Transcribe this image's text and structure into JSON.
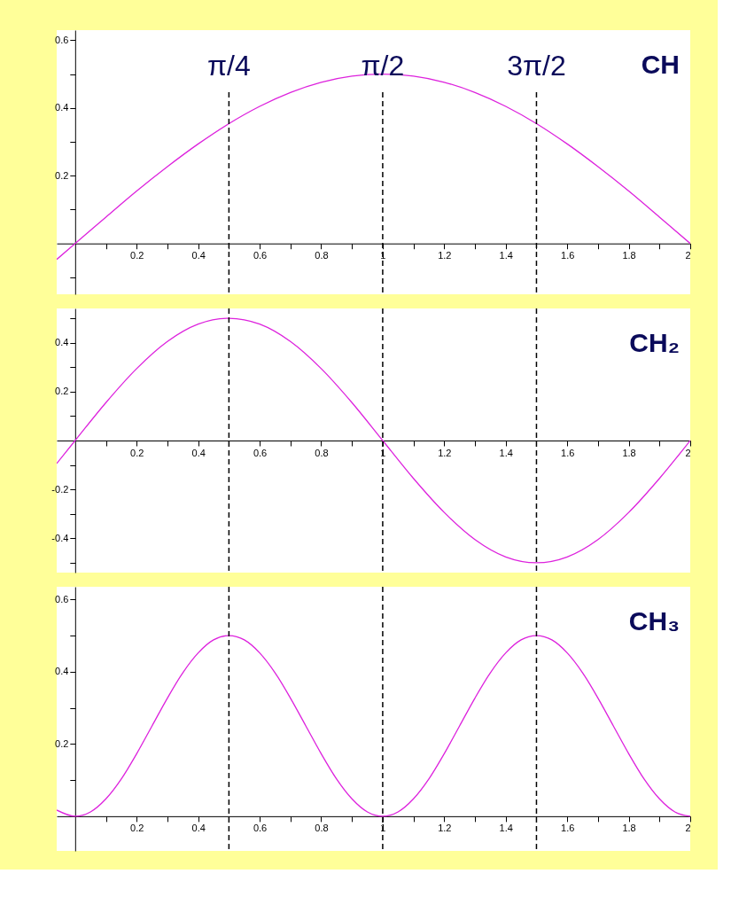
{
  "chart_data": [
    {
      "type": "line",
      "title": "CH",
      "x": [
        -0.06,
        0,
        0.1,
        0.2,
        0.3,
        0.4,
        0.5,
        0.6,
        0.7,
        0.8,
        0.9,
        1,
        1.1,
        1.2,
        1.3,
        1.4,
        1.5,
        1.6,
        1.7,
        1.8,
        1.9,
        2
      ],
      "series": [
        {
          "color": "#dd22dd",
          "values": [
            -0.047,
            0,
            0.078,
            0.155,
            0.227,
            0.294,
            0.354,
            0.405,
            0.446,
            0.476,
            0.494,
            0.5,
            0.494,
            0.476,
            0.446,
            0.405,
            0.354,
            0.294,
            0.227,
            0.155,
            0.078,
            0
          ]
        }
      ],
      "xlim": [
        -0.06,
        2
      ],
      "ylim": [
        -0.15,
        0.63
      ],
      "xticks": [
        {
          "value": 0.1,
          "label": null
        },
        0.2,
        {
          "value": 0.3,
          "label": null
        },
        0.4,
        {
          "value": 0.5,
          "label": null
        },
        0.6,
        {
          "value": 0.7,
          "label": null
        },
        0.8,
        {
          "value": 0.9,
          "label": null
        },
        1,
        {
          "value": 1.1,
          "label": null
        },
        1.2,
        {
          "value": 1.3,
          "label": null
        },
        1.4,
        {
          "value": 1.5,
          "label": null
        },
        1.6,
        {
          "value": 1.7,
          "label": null
        },
        1.8,
        {
          "value": 1.9,
          "label": null
        },
        2
      ],
      "yticks": [
        {
          "value": -0.1,
          "label": null
        },
        {
          "value": 0.1,
          "label": null
        },
        0.2,
        {
          "value": 0.3,
          "label": null
        },
        0.4,
        {
          "value": 0.5,
          "label": null
        },
        0.6
      ],
      "ref_lines": [
        {
          "axis": "x",
          "value": 0.5,
          "label": "π/4",
          "color": "#000000",
          "line_style": "dashed"
        },
        {
          "axis": "x",
          "value": 1,
          "label": "π/2",
          "color": "#000000",
          "line_style": "dashed"
        },
        {
          "axis": "x",
          "value": 1.5,
          "label": "3π/2",
          "color": "#000000",
          "line_style": "dashed"
        }
      ],
      "grid": false,
      "marker": "none",
      "line_style": "solid"
    },
    {
      "type": "line",
      "title": "CH₂",
      "x": [
        -0.06,
        0,
        0.1,
        0.2,
        0.3,
        0.4,
        0.5,
        0.6,
        0.7,
        0.8,
        0.9,
        1,
        1.1,
        1.2,
        1.3,
        1.4,
        1.5,
        1.6,
        1.7,
        1.8,
        1.9,
        2
      ],
      "series": [
        {
          "color": "#dd22dd",
          "values": [
            -0.094,
            0,
            0.155,
            0.294,
            0.405,
            0.476,
            0.5,
            0.476,
            0.405,
            0.294,
            0.155,
            0,
            -0.155,
            -0.294,
            -0.405,
            -0.476,
            -0.5,
            -0.476,
            -0.405,
            -0.294,
            -0.155,
            0
          ]
        }
      ],
      "xlim": [
        -0.06,
        2
      ],
      "ylim": [
        -0.54,
        0.54
      ],
      "xticks": [
        {
          "value": 0.1,
          "label": null
        },
        0.2,
        {
          "value": 0.3,
          "label": null
        },
        0.4,
        {
          "value": 0.5,
          "label": null
        },
        0.6,
        {
          "value": 0.7,
          "label": null
        },
        0.8,
        {
          "value": 0.9,
          "label": null
        },
        1,
        {
          "value": 1.1,
          "label": null
        },
        1.2,
        {
          "value": 1.3,
          "label": null
        },
        1.4,
        {
          "value": 1.5,
          "label": null
        },
        1.6,
        {
          "value": 1.7,
          "label": null
        },
        1.8,
        {
          "value": 1.9,
          "label": null
        },
        2
      ],
      "yticks": [
        {
          "value": -0.5,
          "label": null
        },
        -0.4,
        {
          "value": -0.3,
          "label": null
        },
        -0.2,
        {
          "value": -0.1,
          "label": null
        },
        {
          "value": 0.1,
          "label": null
        },
        0.2,
        {
          "value": 0.3,
          "label": null
        },
        0.4,
        {
          "value": 0.5,
          "label": null
        }
      ],
      "ref_lines": [
        {
          "axis": "x",
          "value": 0.5,
          "color": "#000000",
          "line_style": "dashed"
        },
        {
          "axis": "x",
          "value": 1,
          "color": "#000000",
          "line_style": "dashed"
        },
        {
          "axis": "x",
          "value": 1.5,
          "color": "#000000",
          "line_style": "dashed"
        }
      ],
      "grid": false,
      "marker": "none",
      "line_style": "solid"
    },
    {
      "type": "line",
      "title": "CH₃",
      "x": [
        -0.06,
        0,
        0.05,
        0.1,
        0.15,
        0.2,
        0.25,
        0.3,
        0.35,
        0.4,
        0.45,
        0.5,
        0.55,
        0.6,
        0.65,
        0.7,
        0.75,
        0.8,
        0.85,
        0.9,
        0.95,
        1,
        1.05,
        1.1,
        1.15,
        1.2,
        1.25,
        1.3,
        1.35,
        1.4,
        1.45,
        1.5,
        1.55,
        1.6,
        1.65,
        1.7,
        1.75,
        1.8,
        1.85,
        1.9,
        1.95,
        2
      ],
      "series": [
        {
          "color": "#dd22dd",
          "values": [
            0.017,
            0,
            0.012,
            0.048,
            0.103,
            0.173,
            0.25,
            0.327,
            0.397,
            0.452,
            0.488,
            0.5,
            0.488,
            0.452,
            0.397,
            0.327,
            0.25,
            0.173,
            0.103,
            0.048,
            0.012,
            0,
            0.012,
            0.048,
            0.103,
            0.173,
            0.25,
            0.327,
            0.397,
            0.452,
            0.488,
            0.5,
            0.488,
            0.452,
            0.397,
            0.327,
            0.25,
            0.173,
            0.103,
            0.048,
            0.012,
            0
          ]
        }
      ],
      "xlim": [
        -0.06,
        2
      ],
      "ylim": [
        -0.096,
        0.635
      ],
      "xticks": [
        {
          "value": 0.1,
          "label": null
        },
        0.2,
        {
          "value": 0.3,
          "label": null
        },
        0.4,
        {
          "value": 0.5,
          "label": null
        },
        0.6,
        {
          "value": 0.7,
          "label": null
        },
        0.8,
        {
          "value": 0.9,
          "label": null
        },
        1,
        {
          "value": 1.1,
          "label": null
        },
        1.2,
        {
          "value": 1.3,
          "label": null
        },
        1.4,
        {
          "value": 1.5,
          "label": null
        },
        1.6,
        {
          "value": 1.7,
          "label": null
        },
        1.8,
        {
          "value": 1.9,
          "label": null
        },
        2
      ],
      "yticks": [
        {
          "value": 0.1,
          "label": null
        },
        0.2,
        {
          "value": 0.3,
          "label": null
        },
        0.4,
        {
          "value": 0.5,
          "label": null
        },
        0.6
      ],
      "ref_lines": [
        {
          "axis": "x",
          "value": 0.5,
          "color": "#000000",
          "line_style": "dashed"
        },
        {
          "axis": "x",
          "value": 1,
          "color": "#000000",
          "line_style": "dashed"
        },
        {
          "axis": "x",
          "value": 1.5,
          "color": "#000000",
          "line_style": "dashed"
        }
      ],
      "grid": false,
      "marker": "none",
      "line_style": "solid"
    }
  ]
}
